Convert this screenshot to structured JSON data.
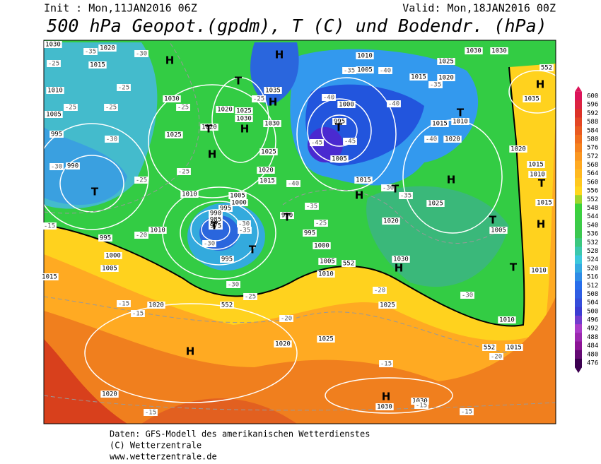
{
  "header": {
    "init": "Init : Mon,11JAN2016 06Z",
    "valid": "Valid: Mon,18JAN2016 00Z",
    "title": "500 hPa Geopot.(gpdm), T (C) und Bodendr. (hPa)"
  },
  "map": {
    "pressure_labels": [
      "1030",
      "1020",
      "1015",
      "1010",
      "1005",
      "995",
      "990",
      "1030",
      "1025",
      "1020",
      "1025",
      "1030",
      "1020",
      "1035",
      "1030",
      "1025",
      "1020",
      "1015",
      "1010",
      "1005",
      "1000",
      "995",
      "990",
      "985",
      "975",
      "990",
      "995",
      "1000",
      "1005",
      "1010",
      "995",
      "1010",
      "995",
      "1000",
      "1005",
      "1015",
      "1020",
      "1020",
      "1025",
      "1020",
      "1030",
      "1030",
      "1025",
      "1030",
      "1020",
      "1015",
      "1005",
      "1000",
      "995",
      "1005",
      "1010",
      "1015",
      "1025",
      "1020",
      "1030",
      "1030",
      "1015",
      "1010",
      "1020",
      "1035",
      "1020",
      "1015",
      "1010",
      "1015",
      "1025",
      "1005",
      "1010",
      "1010",
      "1015"
    ],
    "geopotential_labels": [
      "552",
      "552",
      "552",
      "552"
    ],
    "temperature_labels": [
      "-35",
      "-30",
      "-25",
      "-25",
      "-25",
      "-25",
      "-30",
      "-30",
      "-25",
      "-25",
      "-15",
      "-20",
      "-30",
      "-35",
      "-30",
      "-30",
      "-25",
      "-35",
      "-25",
      "-40",
      "-45",
      "-45",
      "-40",
      "-35",
      "-40",
      "-40",
      "-35",
      "-40",
      "-30",
      "-35",
      "-30",
      "-15",
      "-15",
      "-20",
      "-20",
      "-20",
      "-15",
      "-15",
      "-15",
      "-15",
      "-25",
      "-25"
    ],
    "high_labels": [
      "H",
      "H",
      "H",
      "H",
      "H",
      "H",
      "H",
      "H",
      "H",
      "H",
      "H",
      "H"
    ],
    "low_labels": [
      "T",
      "T",
      "T",
      "T",
      "T",
      "T",
      "T",
      "T",
      "T",
      "T",
      "T",
      "T"
    ]
  },
  "colorbar": {
    "values": [
      600,
      596,
      592,
      588,
      584,
      580,
      576,
      572,
      568,
      564,
      560,
      556,
      552,
      548,
      544,
      540,
      536,
      532,
      528,
      524,
      520,
      516,
      512,
      508,
      504,
      500,
      496,
      492,
      488,
      484,
      480,
      476
    ]
  },
  "footer": [
    "Daten: GFS-Modell des amerikanischen Wetterdienstes",
    "(C) Wetterzentrale",
    "www.wetterzentrale.de"
  ]
}
